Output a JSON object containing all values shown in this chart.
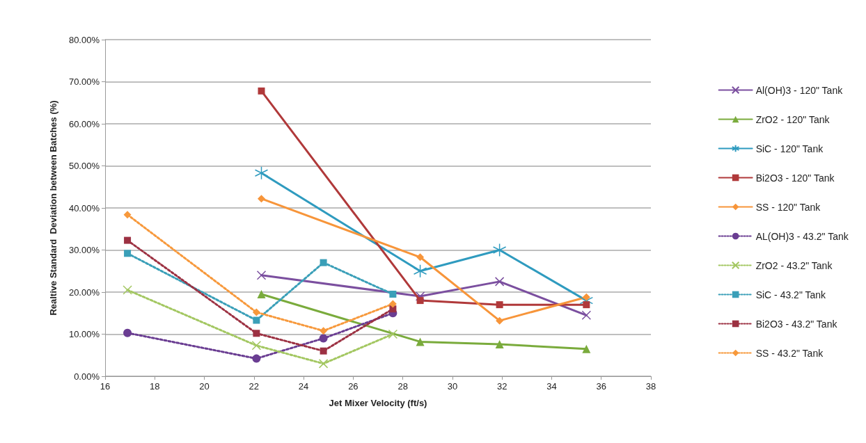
{
  "chart_data": {
    "type": "line",
    "xlabel": "Jet Mixer Velocity (ft/s)",
    "ylabel": "Realtive Standard  Deviation between Batches (%)",
    "xlim": [
      16,
      38
    ],
    "xticks": [
      16,
      18,
      20,
      22,
      24,
      26,
      28,
      30,
      32,
      34,
      36,
      38
    ],
    "ylim": [
      0,
      80
    ],
    "yticks": [
      {
        "value": 0,
        "label": "0.00%"
      },
      {
        "value": 10,
        "label": "10.00%"
      },
      {
        "value": 20,
        "label": "20.00%"
      },
      {
        "value": 30,
        "label": "30.00%"
      },
      {
        "value": 40,
        "label": "40.00%"
      },
      {
        "value": 50,
        "label": "50.00%"
      },
      {
        "value": 60,
        "label": "60.00%"
      },
      {
        "value": 70,
        "label": "70.00%"
      },
      {
        "value": 80,
        "label": "80.00%"
      }
    ],
    "grid": "y",
    "legend": "right",
    "series": [
      {
        "name": "Al(OH)3 - 120\" Tank",
        "color": "#7b4f9f",
        "marker": "cross",
        "line_style": "solid",
        "x": [
          22.3,
          28.7,
          31.9,
          35.4
        ],
        "values": [
          24,
          19,
          22.5,
          14.5
        ]
      },
      {
        "name": "ZrO2 - 120\" Tank",
        "color": "#7aab3c",
        "marker": "triangle",
        "line_style": "solid",
        "x": [
          22.3,
          28.7,
          31.9,
          35.4
        ],
        "values": [
          19.5,
          8.2,
          7.6,
          6.5
        ]
      },
      {
        "name": "SiC - 120\" Tank",
        "color": "#2f9bbf",
        "marker": "star",
        "line_style": "solid",
        "x": [
          22.3,
          28.7,
          31.9,
          35.4
        ],
        "values": [
          48.3,
          25,
          30,
          18
        ]
      },
      {
        "name": "Bi2O3 - 120\" Tank",
        "color": "#b0393a",
        "marker": "square",
        "line_style": "solid",
        "x": [
          22.3,
          28.7,
          31.9,
          35.4
        ],
        "values": [
          67.8,
          18,
          17,
          17
        ]
      },
      {
        "name": "SS - 120\" Tank",
        "color": "#f7953a",
        "marker": "diamond",
        "line_style": "solid",
        "x": [
          22.3,
          28.7,
          31.9,
          35.4
        ],
        "values": [
          42.2,
          28.3,
          13.2,
          18.8
        ]
      },
      {
        "name": "AL(OH)3 - 43.2\" Tank",
        "color": "#6a3d92",
        "marker": "circle",
        "line_style": "dotted",
        "x": [
          16.9,
          22.1,
          24.8,
          27.6
        ],
        "values": [
          10.3,
          4.2,
          9,
          15
        ]
      },
      {
        "name": "ZrO2 - 43.2\" Tank",
        "color": "#a3c761",
        "marker": "cross",
        "line_style": "dotted",
        "x": [
          16.9,
          22.1,
          24.8,
          27.6
        ],
        "values": [
          20.5,
          7.3,
          3,
          10
        ]
      },
      {
        "name": "SiC - 43.2\" Tank",
        "color": "#3a9fb8",
        "marker": "square",
        "line_style": "dotted",
        "x": [
          16.9,
          22.1,
          24.8,
          27.6
        ],
        "values": [
          29.2,
          13.3,
          27,
          19.5
        ]
      },
      {
        "name": "Bi2O3 - 43.2\" Tank",
        "color": "#9c3142",
        "marker": "square",
        "line_style": "dotted",
        "x": [
          16.9,
          22.1,
          24.8,
          27.6
        ],
        "values": [
          32.3,
          10.2,
          6,
          16
        ]
      },
      {
        "name": "SS - 43.2\" Tank",
        "color": "#f7993c",
        "marker": "diamond",
        "line_style": "dotted",
        "x": [
          16.9,
          22.1,
          24.8,
          27.6
        ],
        "values": [
          38.4,
          15.2,
          10.8,
          17.2
        ]
      }
    ]
  }
}
